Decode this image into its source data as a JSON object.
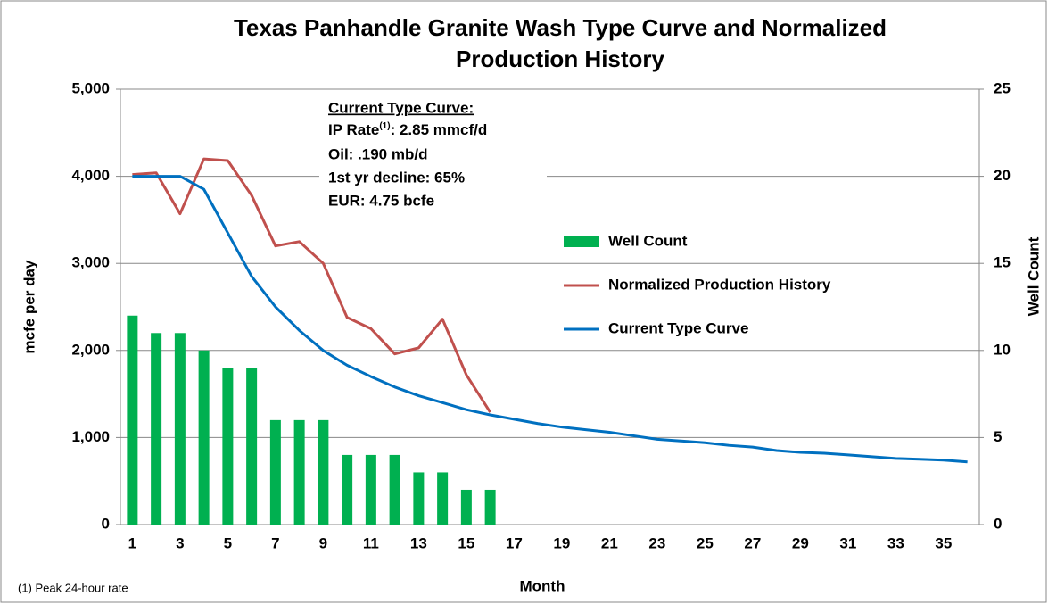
{
  "chart_data": {
    "type": "bar-line",
    "title": [
      "Texas Panhandle  Granite Wash Type Curve and Normalized",
      "Production History"
    ],
    "x_label": "Month",
    "y_label": "mcfe per day",
    "y2_label": "Well Count",
    "categories": [
      "1",
      null,
      "3",
      null,
      "5",
      null,
      "7",
      null,
      "9",
      null,
      "11",
      null,
      "13",
      null,
      "15",
      null,
      "17",
      null,
      "19",
      null,
      "21",
      null,
      "23",
      null,
      "25",
      null,
      "27",
      null,
      "29",
      null,
      "31",
      null,
      "33",
      null,
      "35",
      null
    ],
    "series": [
      {
        "name": "Well Count",
        "type": "bar",
        "axis": "y2",
        "color": "#00b050",
        "values": [
          12,
          11,
          11,
          10,
          9,
          9,
          6,
          6,
          6,
          4,
          4,
          4,
          3,
          3,
          2,
          2,
          null,
          null,
          null,
          null,
          null,
          null,
          null,
          null,
          null,
          null,
          null,
          null,
          null,
          null,
          null,
          null,
          null,
          null,
          null,
          null
        ]
      },
      {
        "name": "Normalized Production History",
        "type": "line",
        "color": "#c0504d",
        "values": [
          4020,
          4040,
          3570,
          4200,
          4180,
          3780,
          3200,
          3250,
          3000,
          2380,
          2250,
          1960,
          2030,
          2360,
          1720,
          1290,
          null,
          null,
          null,
          null,
          null,
          null,
          null,
          null,
          null,
          null,
          null,
          null,
          null,
          null,
          null,
          null,
          null,
          null,
          null,
          null
        ]
      },
      {
        "name": "Current Type Curve",
        "type": "line",
        "color": "#0070c0",
        "values": [
          4000,
          4000,
          4000,
          3850,
          3350,
          2850,
          2500,
          2230,
          2000,
          1830,
          1700,
          1580,
          1480,
          1400,
          1320,
          1260,
          1210,
          1160,
          1120,
          1090,
          1060,
          1020,
          980,
          960,
          940,
          910,
          890,
          850,
          830,
          820,
          800,
          780,
          760,
          750,
          740,
          720
        ]
      }
    ],
    "ylim": [
      0,
      5000
    ],
    "yticks": [
      0,
      {
        "value": 1000,
        "label": "1,000"
      },
      {
        "value": 2000,
        "label": "2,000"
      },
      {
        "value": 3000,
        "label": "3,000"
      },
      {
        "value": 4000,
        "label": "4,000"
      },
      {
        "value": 5000,
        "label": "5,000"
      }
    ],
    "y2lim": [
      0,
      25
    ],
    "y2ticks": [
      0,
      5,
      10,
      15,
      20,
      25
    ],
    "grid": true,
    "legend": "right",
    "annotation": {
      "title": "Current Type Curve:",
      "ip_rate": {
        "label": "IP Rate",
        "superscript": "(1)",
        "text": ": 2.85 mmcf/d"
      },
      "lines": [
        "Oil: .190 mb/d",
        "1st yr decline: 65%",
        "EUR: 4.75 bcfe"
      ]
    },
    "footnote": "(1) Peak 24-hour rate"
  }
}
